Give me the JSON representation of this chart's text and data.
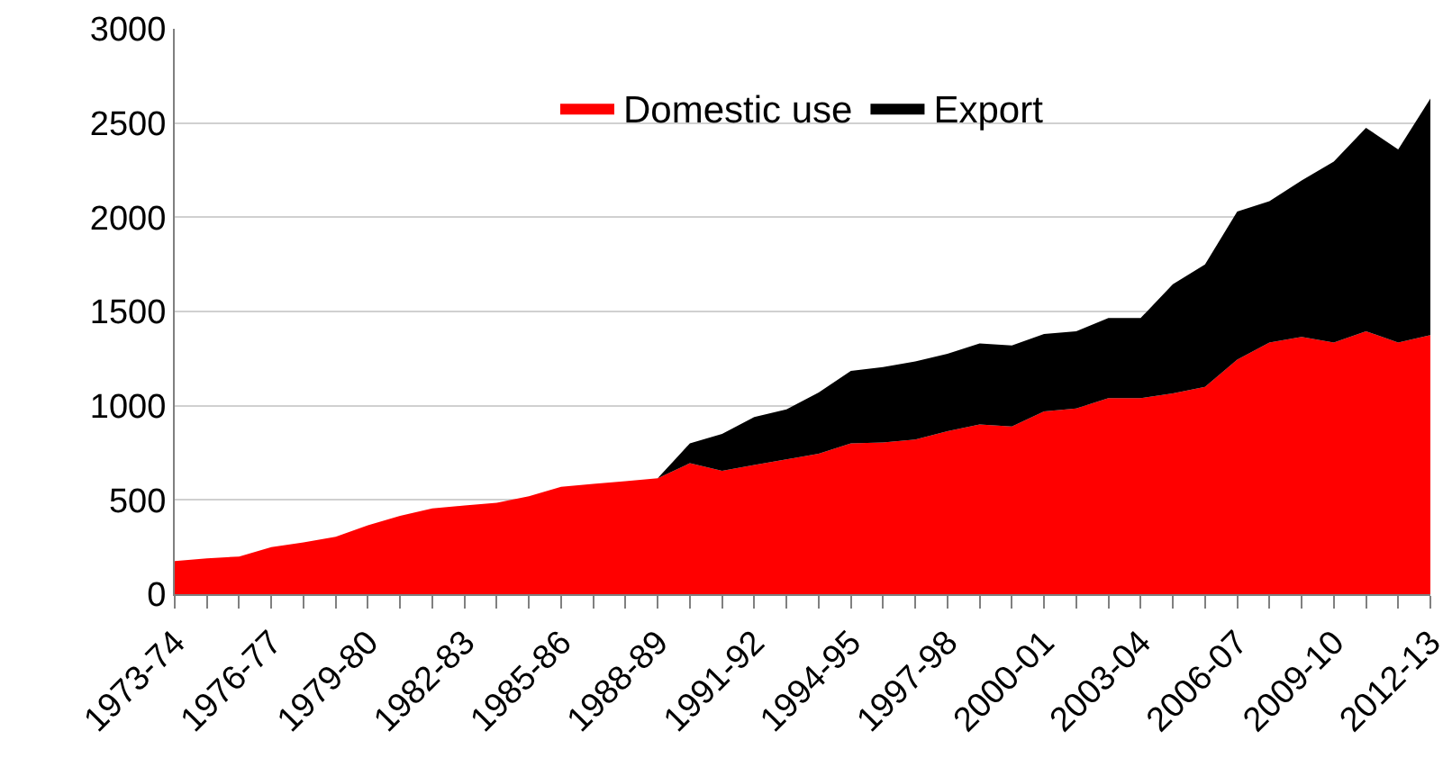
{
  "chart_data": {
    "type": "area",
    "stacked": true,
    "categories": [
      "1973-74",
      null,
      null,
      "1976-77",
      null,
      null,
      "1979-80",
      null,
      null,
      "1982-83",
      null,
      null,
      "1985-86",
      null,
      null,
      "1988-89",
      null,
      null,
      "1991-92",
      null,
      null,
      "1994-95",
      null,
      null,
      "1997-98",
      null,
      null,
      "2000-01",
      null,
      null,
      "2003-04",
      null,
      null,
      "2006-07",
      null,
      null,
      "2009-10",
      null,
      null,
      "2012-13"
    ],
    "series": [
      {
        "name": "Domestic use",
        "color": "#ff0000",
        "values": [
          175,
          190,
          200,
          250,
          275,
          305,
          365,
          415,
          455,
          470,
          485,
          520,
          570,
          585,
          600,
          615,
          695,
          655,
          685,
          715,
          745,
          800,
          805,
          820,
          865,
          900,
          890,
          970,
          985,
          1040,
          1040,
          1065,
          1100,
          1245,
          1335,
          1365,
          1335,
          1395,
          1335,
          1375
        ]
      },
      {
        "name": "Export",
        "color": "#000000",
        "values": [
          0,
          0,
          0,
          0,
          0,
          0,
          0,
          0,
          0,
          0,
          0,
          0,
          0,
          0,
          0,
          0,
          105,
          195,
          255,
          265,
          325,
          385,
          400,
          415,
          410,
          430,
          430,
          410,
          410,
          425,
          425,
          580,
          650,
          785,
          750,
          830,
          960,
          1080,
          1025,
          1255
        ]
      }
    ],
    "ylim": [
      0,
      3000
    ],
    "yticks": [
      0,
      500,
      1000,
      1500,
      2000,
      2500,
      3000
    ],
    "grid": "y",
    "legend": "top"
  }
}
